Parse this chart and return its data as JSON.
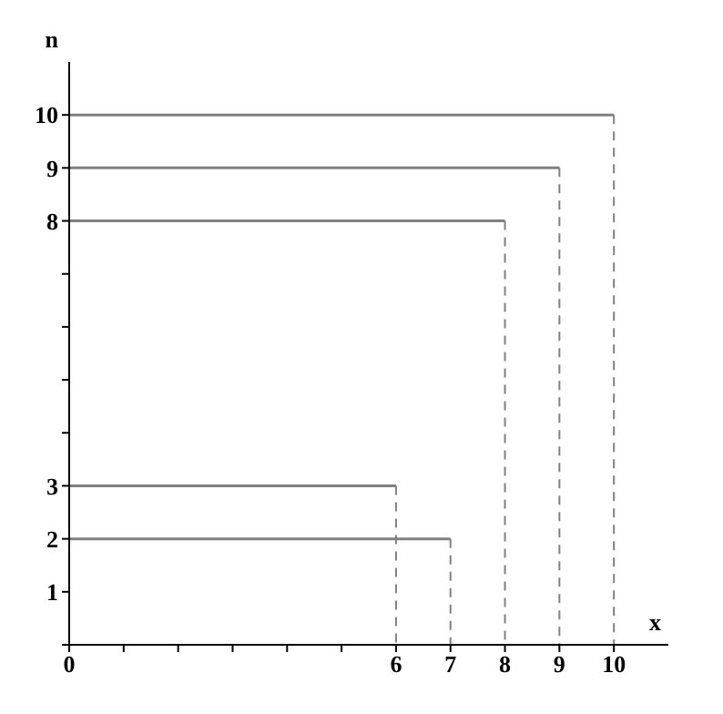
{
  "chart_data": {
    "type": "line",
    "xlabel": "x",
    "ylabel": "n",
    "color": "#808080",
    "series": [
      {
        "x": [
          0,
          6
        ],
        "values": [
          3,
          3
        ],
        "line_style": "solid"
      },
      {
        "x": [
          6,
          6
        ],
        "values": [
          3,
          0
        ],
        "line_style": "dashed"
      },
      {
        "x": [
          0,
          7
        ],
        "values": [
          2,
          2
        ],
        "line_style": "solid"
      },
      {
        "x": [
          7,
          7
        ],
        "values": [
          2,
          0
        ],
        "line_style": "dashed"
      },
      {
        "x": [
          0,
          8
        ],
        "values": [
          8,
          8
        ],
        "line_style": "solid"
      },
      {
        "x": [
          8,
          8
        ],
        "values": [
          8,
          0
        ],
        "line_style": "dashed"
      },
      {
        "x": [
          0,
          9
        ],
        "values": [
          9,
          9
        ],
        "line_style": "solid"
      },
      {
        "x": [
          9,
          9
        ],
        "values": [
          9,
          0
        ],
        "line_style": "dashed"
      },
      {
        "x": [
          0,
          10
        ],
        "values": [
          10,
          10
        ],
        "line_style": "solid"
      },
      {
        "x": [
          10,
          10
        ],
        "values": [
          10,
          0
        ],
        "line_style": "dashed"
      }
    ],
    "xlim": [
      0,
      11
    ],
    "ylim": [
      0,
      11
    ],
    "xticks": [
      0,
      {
        "value": 1,
        "label": null
      },
      {
        "value": 2,
        "label": null
      },
      {
        "value": 3,
        "label": null
      },
      {
        "value": 4,
        "label": null
      },
      {
        "value": 5,
        "label": null
      },
      6,
      7,
      8,
      9,
      10
    ],
    "yticks": [
      {
        "value": 0,
        "label": null
      },
      1,
      2,
      3,
      {
        "value": 4,
        "label": null
      },
      {
        "value": 5,
        "label": null
      },
      {
        "value": 6,
        "label": null
      },
      {
        "value": 7,
        "label": null
      },
      8,
      9,
      10
    ],
    "marker": "none"
  }
}
